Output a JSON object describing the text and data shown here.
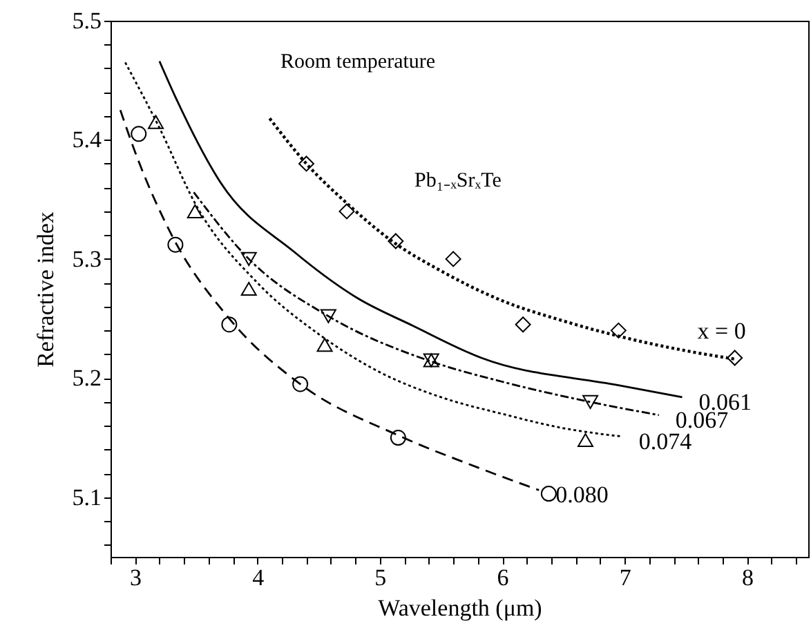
{
  "chart_data": {
    "type": "line",
    "xlabel": "Wavelength (μm)",
    "ylabel": "Refractive index",
    "xlim": [
      2.8,
      8.5
    ],
    "ylim": [
      5.05,
      5.5
    ],
    "xticks": [
      {
        "value": 2.8,
        "label": null
      },
      3,
      {
        "value": 3.2,
        "label": null
      },
      {
        "value": 3.4,
        "label": null
      },
      {
        "value": 3.6,
        "label": null
      },
      {
        "value": 3.8,
        "label": null
      },
      4,
      {
        "value": 4.2,
        "label": null
      },
      {
        "value": 4.4,
        "label": null
      },
      {
        "value": 4.6,
        "label": null
      },
      {
        "value": 4.8,
        "label": null
      },
      5,
      {
        "value": 5.2,
        "label": null
      },
      {
        "value": 5.4,
        "label": null
      },
      {
        "value": 5.6,
        "label": null
      },
      {
        "value": 5.8,
        "label": null
      },
      6,
      {
        "value": 6.2,
        "label": null
      },
      {
        "value": 6.4,
        "label": null
      },
      {
        "value": 6.6,
        "label": null
      },
      {
        "value": 6.8,
        "label": null
      },
      7,
      {
        "value": 7.2,
        "label": null
      },
      {
        "value": 7.4,
        "label": null
      },
      {
        "value": 7.6,
        "label": null
      },
      {
        "value": 7.8,
        "label": null
      },
      8,
      {
        "value": 8.2,
        "label": null
      },
      {
        "value": 8.4,
        "label": null
      }
    ],
    "yticks": [
      {
        "value": 5.06,
        "label": null
      },
      {
        "value": 5.08,
        "label": null
      },
      5.1,
      {
        "value": 5.12,
        "label": null
      },
      {
        "value": 5.14,
        "label": null
      },
      {
        "value": 5.16,
        "label": null
      },
      {
        "value": 5.18,
        "label": null
      },
      5.2,
      {
        "value": 5.22,
        "label": null
      },
      {
        "value": 5.24,
        "label": null
      },
      {
        "value": 5.26,
        "label": null
      },
      {
        "value": 5.28,
        "label": null
      },
      5.3,
      {
        "value": 5.32,
        "label": null
      },
      {
        "value": 5.34,
        "label": null
      },
      {
        "value": 5.36,
        "label": null
      },
      {
        "value": 5.38,
        "label": null
      },
      5.4,
      {
        "value": 5.42,
        "label": null
      },
      {
        "value": 5.44,
        "label": null
      },
      {
        "value": 5.46,
        "label": null
      },
      {
        "value": 5.48,
        "label": null
      },
      5.5
    ],
    "grid": false,
    "series": [
      {
        "name": "x = 0",
        "color": "#000000",
        "line_style": "dotted",
        "marker": "none",
        "x": [
          4.1,
          4.4,
          4.75,
          5.1,
          5.5,
          6.0,
          6.5,
          7.0,
          7.5,
          7.9
        ],
        "values": [
          5.418,
          5.38,
          5.345,
          5.315,
          5.29,
          5.265,
          5.248,
          5.234,
          5.223,
          5.216
        ]
      },
      {
        "type": "scatter",
        "color": "#000000",
        "marker": "diamond",
        "x": [
          4.4,
          4.73,
          5.13,
          5.6,
          6.17,
          6.95,
          7.9
        ],
        "values": [
          5.38,
          5.34,
          5.315,
          5.3,
          5.245,
          5.24,
          5.217
        ]
      },
      {
        "name": "0.061",
        "color": "#000000",
        "line_style": "solid",
        "marker": "none",
        "x": [
          3.2,
          3.33,
          3.7,
          4.3,
          4.82,
          5.27,
          5.83,
          6.95,
          7.47
        ],
        "values": [
          5.466,
          5.436,
          5.364,
          5.306,
          5.267,
          5.244,
          5.217,
          5.194,
          5.184
        ]
      },
      {
        "name": "0.067",
        "color": "#000000",
        "line_style": "dashdot",
        "marker": "none",
        "x": [
          3.48,
          3.93,
          4.58,
          5.42,
          6.0,
          6.72,
          7.28
        ],
        "values": [
          5.356,
          5.3,
          5.252,
          5.214,
          5.197,
          5.18,
          5.169
        ]
      },
      {
        "type": "scatter",
        "color": "#000000",
        "marker": "triangle-down",
        "x": [
          3.93,
          4.58,
          5.42,
          6.72
        ],
        "values": [
          5.3,
          5.252,
          5.215,
          5.18
        ]
      },
      {
        "name": "0.074",
        "color": "#000000",
        "line_style": "dotted",
        "marker": "none",
        "x": [
          2.92,
          3.2,
          3.5,
          4.0,
          4.5,
          5.0,
          5.5,
          6.0,
          6.5,
          6.98
        ],
        "values": [
          5.465,
          5.41,
          5.345,
          5.28,
          5.237,
          5.205,
          5.184,
          5.17,
          5.158,
          5.151
        ]
      },
      {
        "type": "scatter",
        "color": "#000000",
        "marker": "triangle",
        "x": [
          3.17,
          3.49,
          3.93,
          4.55,
          5.42,
          6.68
        ],
        "values": [
          5.415,
          5.34,
          5.275,
          5.228,
          5.215,
          5.148
        ]
      },
      {
        "name": "0.080",
        "color": "#000000",
        "line_style": "dashed",
        "marker": "none",
        "x": [
          2.88,
          3.0,
          3.3,
          3.77,
          4.35,
          5.15,
          5.8,
          6.3
        ],
        "values": [
          5.425,
          5.39,
          5.32,
          5.25,
          5.195,
          5.152,
          5.125,
          5.106
        ]
      },
      {
        "type": "scatter",
        "color": "#000000",
        "marker": "circle",
        "x": [
          3.03,
          3.33,
          3.77,
          4.35,
          5.15,
          6.38
        ],
        "values": [
          5.405,
          5.312,
          5.245,
          5.195,
          5.15,
          5.103
        ]
      }
    ],
    "annotations": [
      "Room temperature",
      "Pb₁₋ₓSrₓTe"
    ]
  }
}
